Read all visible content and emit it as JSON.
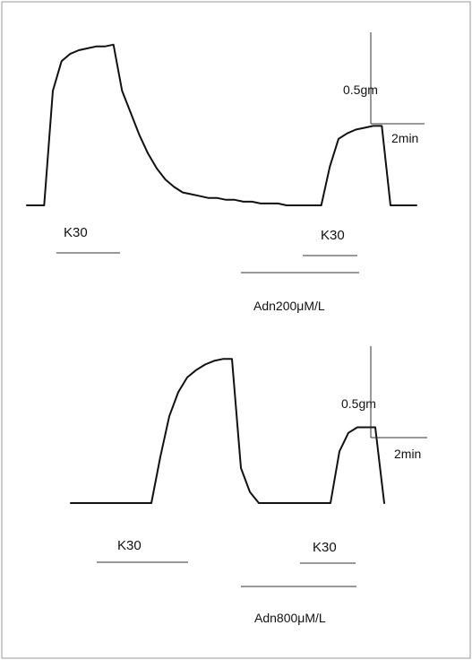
{
  "chart_data": [
    {
      "type": "line",
      "panel": "top",
      "drug_label": "Adn200μM/L",
      "stim_labels": [
        "K30",
        "K30"
      ],
      "scale_bar": {
        "tension": "0.5gm",
        "time": "2min"
      },
      "x_min": [
        0,
        0.44,
        0.88,
        1.32,
        1.76,
        2.2,
        2.64,
        3.08,
        3.52,
        3.96,
        4.4,
        4.84,
        5.28,
        5.72,
        6.16,
        6.6,
        7.04,
        7.48,
        7.92,
        8.36,
        8.8,
        9.24,
        9.68,
        10.12,
        10.56,
        11.0,
        11.44,
        11.88,
        12.32,
        12.76,
        13.2,
        13.64,
        14.08,
        14.52,
        14.96,
        15.4,
        15.84,
        16.28,
        16.72,
        17.16,
        17.6,
        18.04,
        18.48,
        18.92,
        19.36,
        19.8
      ],
      "tension_gm": [
        0.0,
        0.0,
        0.0,
        0.62,
        0.78,
        0.82,
        0.84,
        0.85,
        0.86,
        0.86,
        0.87,
        0.62,
        0.5,
        0.38,
        0.28,
        0.2,
        0.14,
        0.1,
        0.07,
        0.06,
        0.05,
        0.04,
        0.04,
        0.03,
        0.03,
        0.02,
        0.02,
        0.01,
        0.01,
        0.01,
        0.0,
        0.0,
        0.0,
        0.0,
        0.0,
        0.21,
        0.36,
        0.39,
        0.41,
        0.42,
        0.43,
        0.43,
        0.0,
        0.0,
        0.0,
        0.0
      ]
    },
    {
      "type": "line",
      "panel": "bottom",
      "drug_label": "Adn800μM/L",
      "stim_labels": [
        "K30",
        "K30"
      ],
      "scale_bar": {
        "tension": "0.5gm",
        "time": "2min"
      },
      "x_min": [
        0,
        0.44,
        0.88,
        1.32,
        1.76,
        2.2,
        2.64,
        3.08,
        3.52,
        3.96,
        4.4,
        4.84,
        5.28,
        5.72,
        6.16,
        6.6,
        7.04,
        7.48,
        7.92,
        8.36,
        8.8,
        9.24,
        9.68,
        10.12,
        10.56,
        11.0,
        11.44,
        11.88,
        12.32,
        12.76,
        13.2,
        13.64,
        14.08,
        14.52,
        14.96,
        15.4
      ],
      "tension_gm": [
        0.0,
        0.0,
        0.0,
        0.0,
        0.0,
        0.0,
        0.0,
        0.0,
        0.0,
        0.0,
        0.25,
        0.47,
        0.6,
        0.68,
        0.72,
        0.75,
        0.77,
        0.78,
        0.78,
        0.19,
        0.06,
        0.0,
        0.0,
        0.0,
        0.0,
        0.0,
        0.0,
        0.0,
        0.0,
        0.0,
        0.28,
        0.38,
        0.41,
        0.41,
        0.41,
        0.0
      ]
    }
  ]
}
